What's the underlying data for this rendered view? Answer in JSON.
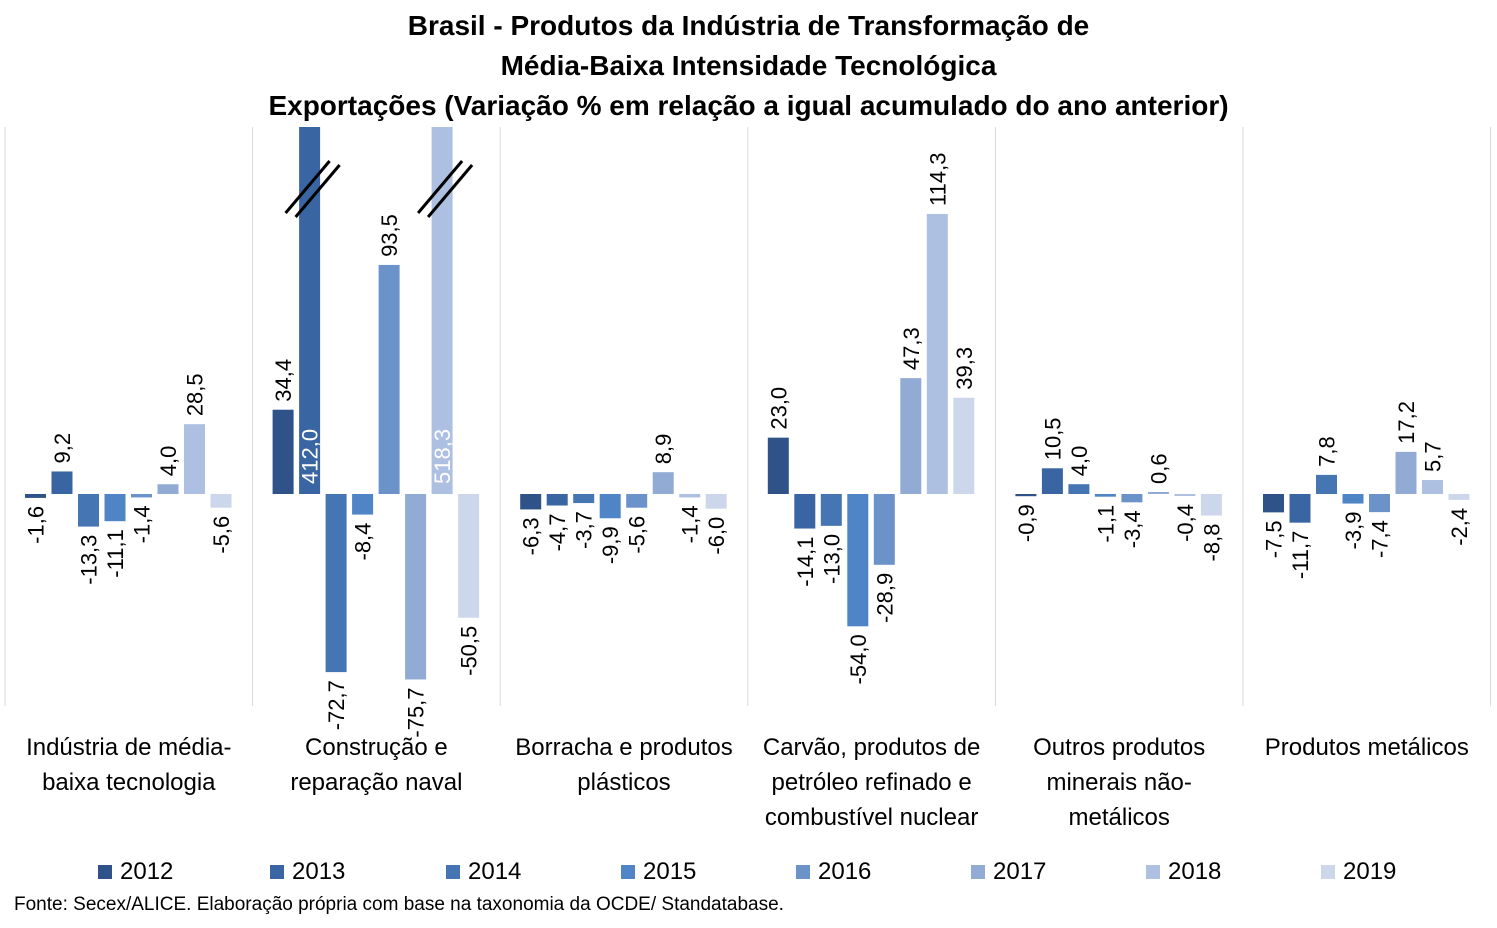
{
  "chart_data": {
    "type": "bar",
    "title_lines": [
      "Brasil - Produtos da Indústria de Transformação de",
      "Média-Baixa Intensidade Tecnológica",
      "Exportações (Variação % em relação a igual acumulado do ano anterior)"
    ],
    "categories": [
      [
        "Indústria de média-",
        "baixa tecnologia"
      ],
      [
        "Construção e",
        "reparação naval"
      ],
      [
        "Borracha e produtos",
        "plásticos"
      ],
      [
        "Carvão, produtos de",
        "petróleo refinado e",
        "combustível nuclear"
      ],
      [
        "Outros produtos",
        "minerais não-",
        "metálicos"
      ],
      [
        "Produtos metálicos"
      ]
    ],
    "series": [
      {
        "name": "2012",
        "color": "#2f5289",
        "values": [
          -1.6,
          34.4,
          -6.3,
          23.0,
          -0.9,
          -7.5
        ],
        "labels": [
          "-1,6",
          "34,4",
          "-6,3",
          "23,0",
          "-0,9",
          "-7,5"
        ]
      },
      {
        "name": "2013",
        "color": "#3a65a3",
        "values": [
          9.2,
          412.0,
          -4.7,
          -14.1,
          10.5,
          -11.7
        ],
        "labels": [
          "9,2",
          "412,0",
          "-4,7",
          "-14,1",
          "10,5",
          "-11,7"
        ]
      },
      {
        "name": "2014",
        "color": "#4675b4",
        "values": [
          -13.3,
          -72.7,
          -3.7,
          -13.0,
          4.0,
          7.8
        ],
        "labels": [
          "-13,3",
          "-72,7",
          "-3,7",
          "-13,0",
          "4,0",
          "7,8"
        ]
      },
      {
        "name": "2015",
        "color": "#4f84c6",
        "values": [
          -11.1,
          -8.4,
          -9.9,
          -54.0,
          -1.1,
          -3.9
        ],
        "labels": [
          "-11,1",
          "-8,4",
          "-9,9",
          "-54,0",
          "-1,1",
          "-3,9"
        ]
      },
      {
        "name": "2016",
        "color": "#6c93c9",
        "values": [
          -1.4,
          93.5,
          -5.6,
          -28.9,
          -3.4,
          -7.4
        ],
        "labels": [
          "-1,4",
          "93,5",
          "-5,6",
          "-28,9",
          "-3,4",
          "-7,4"
        ]
      },
      {
        "name": "2017",
        "color": "#92abd4",
        "values": [
          4.0,
          -75.7,
          8.9,
          47.3,
          0.6,
          17.2
        ],
        "labels": [
          "4,0",
          "-75,7",
          "8,9",
          "47,3",
          "0,6",
          "17,2"
        ]
      },
      {
        "name": "2018",
        "color": "#adc0e1",
        "values": [
          28.5,
          518.3,
          -1.4,
          114.3,
          -0.4,
          5.7
        ],
        "labels": [
          "28,5",
          "518,3",
          "-1,4",
          "114,3",
          "-0,4",
          "5,7"
        ]
      },
      {
        "name": "2019",
        "color": "#cdd7ec",
        "values": [
          -5.6,
          -50.5,
          -6.0,
          39.3,
          -8.8,
          -2.4
        ],
        "labels": [
          "-5,6",
          "-50,5",
          "-6,0",
          "39,3",
          "-8,8",
          "-2,4"
        ]
      }
    ],
    "axis_break_values": [
      412.0,
      518.3
    ],
    "legend_position": "bottom",
    "grid": false
  },
  "source_note": "Fonte: Secex/ALICE. Elaboração própria com base na taxonomia da OCDE/ Standatabase."
}
